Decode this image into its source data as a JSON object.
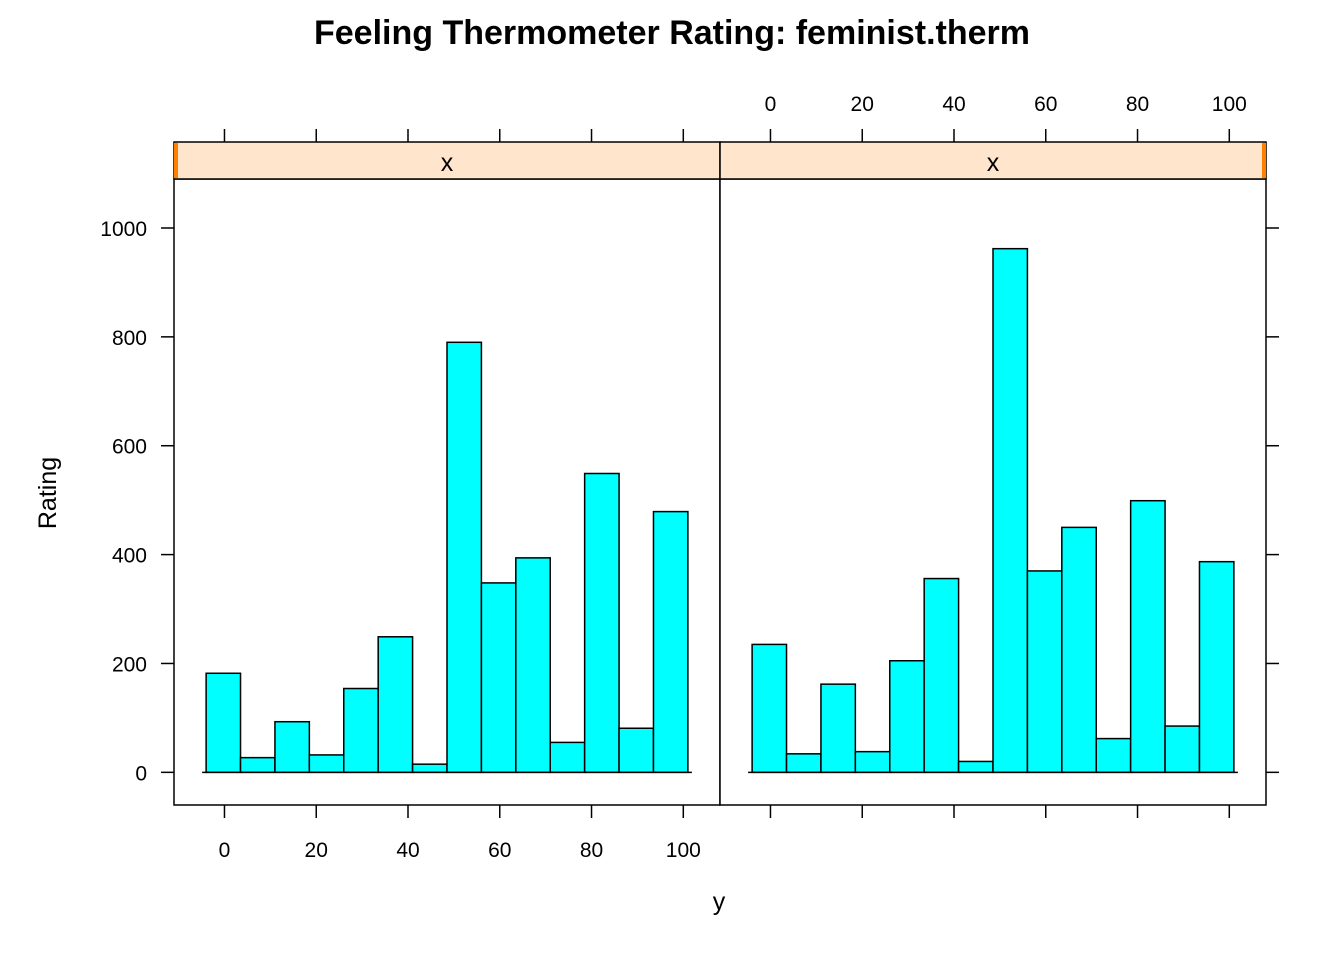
{
  "chart_data": {
    "type": "bar",
    "title": "Feeling Thermometer Rating: feminist.therm",
    "xlabel": "y",
    "ylabel": "Rating",
    "x_ticks": [
      0,
      20,
      40,
      60,
      80,
      100
    ],
    "y_ticks": [
      0,
      200,
      400,
      600,
      800,
      1000
    ],
    "xlim": [
      -11,
      108
    ],
    "ylim": [
      -60,
      1090
    ],
    "bin_edges": [
      -4,
      3.5,
      11,
      18.5,
      26,
      33.5,
      41,
      48.5,
      56,
      63.5,
      71,
      78.5,
      86,
      93.5,
      101
    ],
    "colors": {
      "bar": "#00FFFF",
      "strip": "#FFE5CC",
      "strip_marker": "#FF7F00"
    },
    "panels": [
      {
        "strip_label": "x",
        "values": [
          182,
          27,
          93,
          32,
          154,
          249,
          15,
          790,
          348,
          394,
          55,
          549,
          81,
          479
        ]
      },
      {
        "strip_label": "x",
        "values": [
          235,
          34,
          162,
          38,
          205,
          356,
          20,
          962,
          370,
          450,
          62,
          499,
          85,
          387
        ]
      }
    ]
  }
}
